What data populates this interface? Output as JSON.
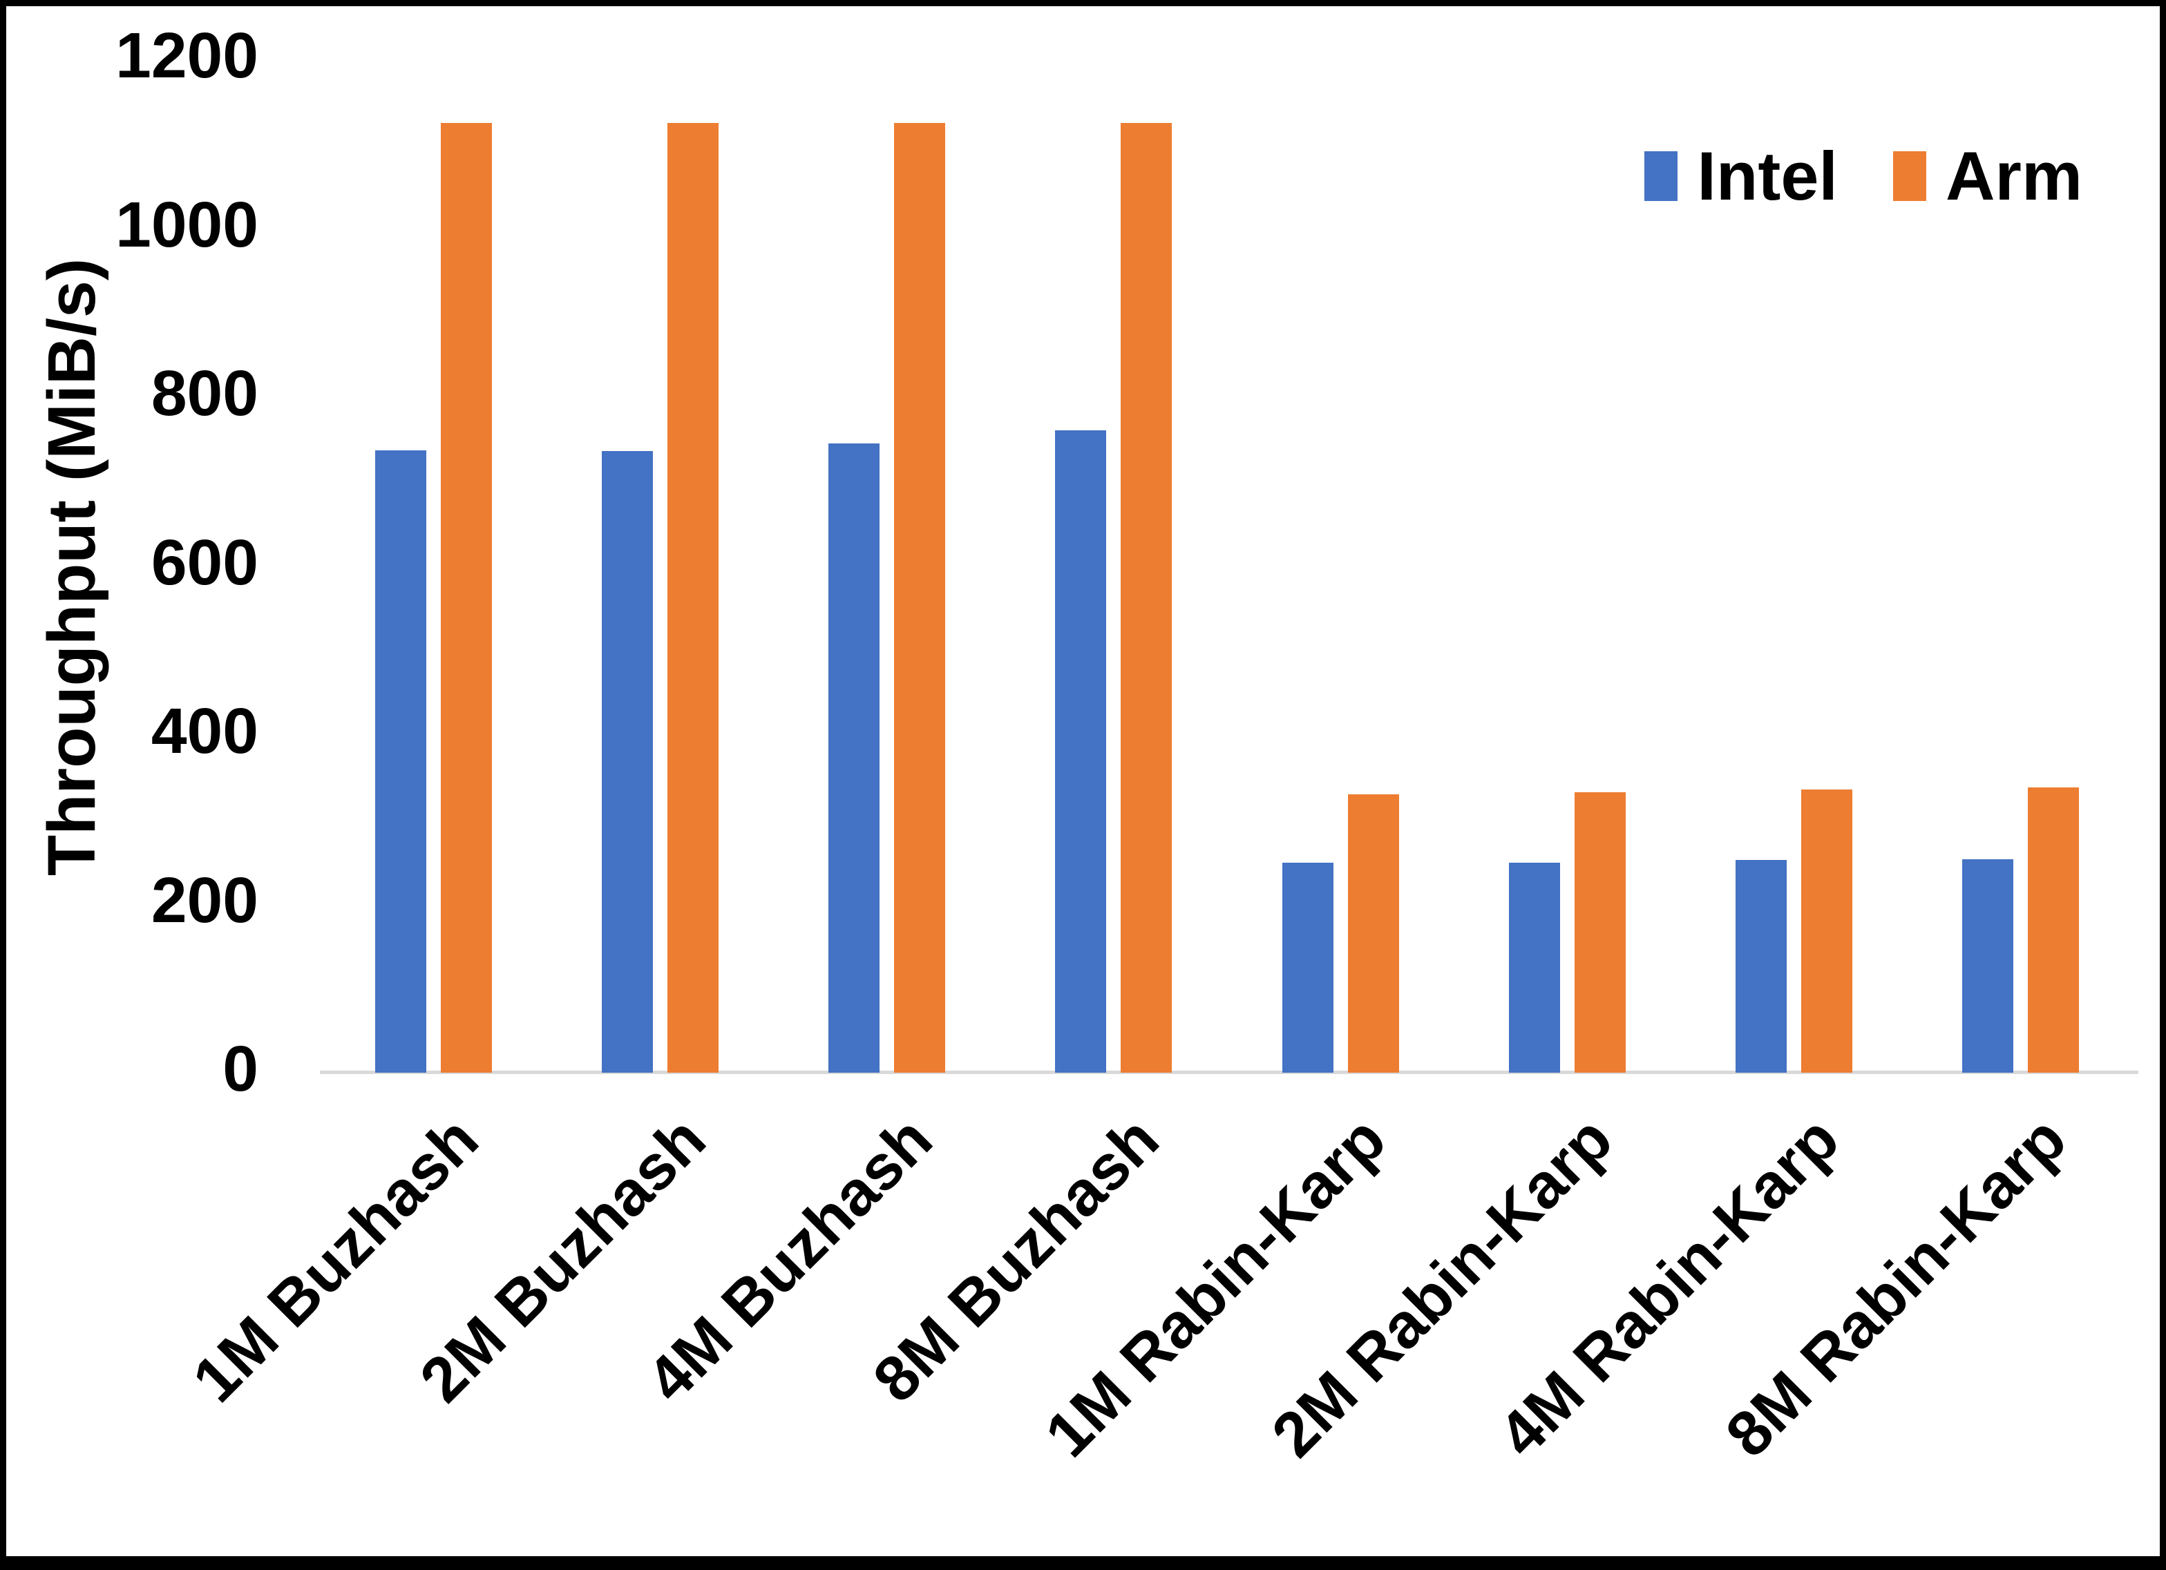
{
  "chart_data": {
    "type": "bar",
    "title": "",
    "ylabel": "Throughput (MiB/s)",
    "xlabel": "",
    "categories": [
      "1M Buzhash",
      "2M Buzhash",
      "4M Buzhash",
      "8M Buzhash",
      "1M Rabin-Karp",
      "2M Rabin-Karp",
      "4M Rabin-Karp",
      "8M Rabin-Karp"
    ],
    "series": [
      {
        "name": "Intel",
        "color": "#4472C4",
        "values": [
          737,
          736,
          745,
          761,
          249,
          249,
          252,
          253
        ]
      },
      {
        "name": "Arm",
        "color": "#ED7D31",
        "values": [
          1125,
          1125,
          1125,
          1125,
          330,
          332,
          335,
          338
        ]
      }
    ],
    "ylim": [
      0,
      1200
    ],
    "yticks": [
      0,
      200,
      400,
      600,
      800,
      1000,
      1200
    ],
    "grid": false,
    "legend_position": "top-right",
    "axis_line_color": "#D9D9D9",
    "frame_color": "#000000"
  }
}
